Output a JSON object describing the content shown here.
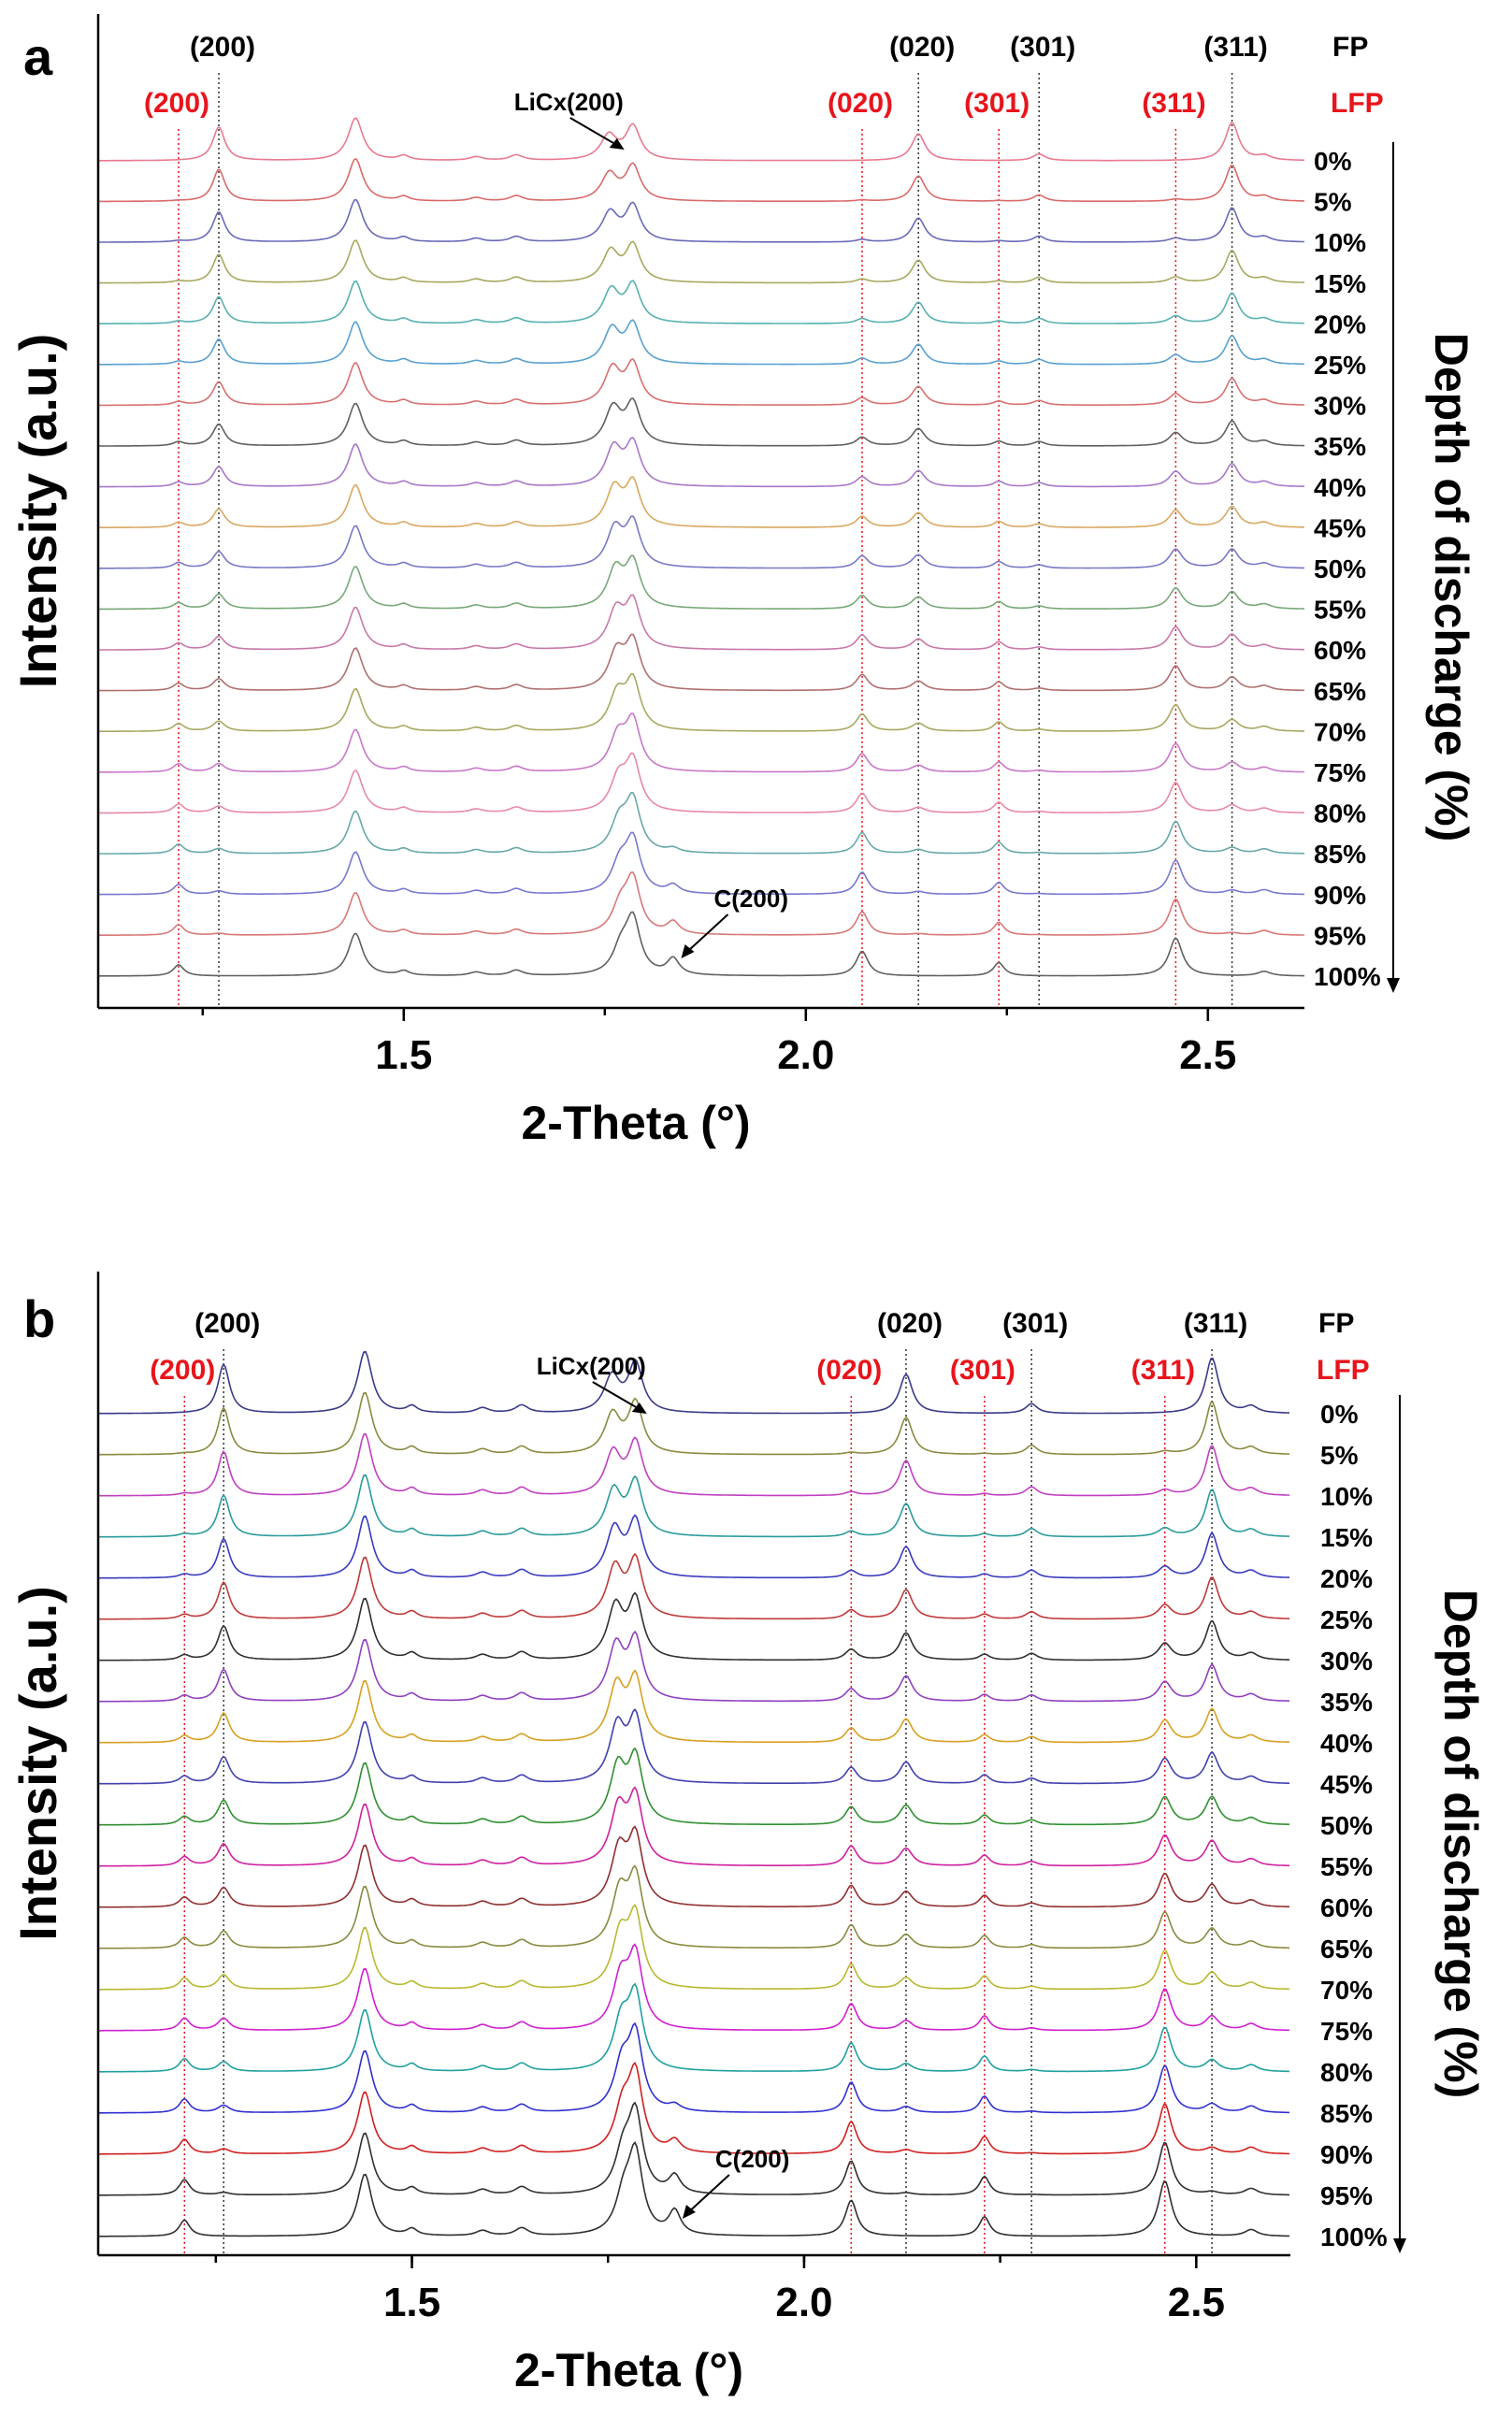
{
  "chart_data": [
    {
      "type": "line",
      "panel": "a",
      "xlabel": "2-Theta (°)",
      "ylabel": "Intensity (a.u.)",
      "right_label": "Depth of discharge (%)",
      "xlim": [
        1.12,
        2.62
      ],
      "xticks": [
        1.5,
        2.0,
        2.5
      ],
      "xtick_labels": [
        "1.5",
        "2.0",
        "2.5"
      ],
      "depth_labels": [
        "0%",
        "5%",
        "10%",
        "15%",
        "20%",
        "25%",
        "30%",
        "35%",
        "40%",
        "45%",
        "50%",
        "55%",
        "60%",
        "65%",
        "70%",
        "75%",
        "80%",
        "85%",
        "90%",
        "95%",
        "100%"
      ],
      "series_colors": [
        "#e87a8f",
        "#d96a6a",
        "#6a6ab8",
        "#a8a860",
        "#58b0b0",
        "#58a0d0",
        "#d87070",
        "#606060",
        "#a878c8",
        "#d8a860",
        "#7878c8",
        "#78a878",
        "#c878a8",
        "#b07070",
        "#a8a860",
        "#c878c8",
        "#e888a8",
        "#68a8a8",
        "#7878d0",
        "#d87878",
        "#606060"
      ],
      "legend": {
        "fp": "FP",
        "lfp": "LFP"
      },
      "fp_peaks": [
        {
          "label": "(200)",
          "x": 1.27
        },
        {
          "label": "(020)",
          "x": 2.14
        },
        {
          "label": "(301)",
          "x": 2.29
        },
        {
          "label": "(311)",
          "x": 2.53
        }
      ],
      "lfp_peaks": [
        {
          "label": "(200)",
          "x": 1.22
        },
        {
          "label": "(020)",
          "x": 2.07
        },
        {
          "label": "(301)",
          "x": 2.24
        },
        {
          "label": "(311)",
          "x": 2.46
        }
      ],
      "annotations": [
        {
          "text": "LiCx(200)",
          "x": 1.765
        },
        {
          "text": "C(200)",
          "x": 1.845
        }
      ]
    },
    {
      "type": "line",
      "panel": "b",
      "xlabel": "2-Theta (°)",
      "ylabel": "Intensity (a.u.)",
      "right_label": "Depth of discharge (%)",
      "xlim": [
        1.1,
        2.62
      ],
      "xticks": [
        1.5,
        2.0,
        2.5
      ],
      "xtick_labels": [
        "1.5",
        "2.0",
        "2.5"
      ],
      "depth_labels": [
        "0%",
        "5%",
        "10%",
        "15%",
        "20%",
        "25%",
        "30%",
        "35%",
        "40%",
        "45%",
        "50%",
        "55%",
        "60%",
        "65%",
        "70%",
        "75%",
        "80%",
        "85%",
        "90%",
        "95%",
        "100%"
      ],
      "series_colors": [
        "#3a3a8a",
        "#8a8a40",
        "#c040c0",
        "#2a9a9a",
        "#3a3ac0",
        "#c03a3a",
        "#303030",
        "#9040c0",
        "#d8a020",
        "#4040b0",
        "#309030",
        "#d020a0",
        "#903030",
        "#8a8a40",
        "#b8b830",
        "#d020d0",
        "#20a0a0",
        "#3030d0",
        "#d02020",
        "#303030",
        "#303030"
      ],
      "legend": {
        "fp": "FP",
        "lfp": "LFP"
      },
      "fp_peaks": [
        {
          "label": "(200)",
          "x": 1.26
        },
        {
          "label": "(020)",
          "x": 2.13
        },
        {
          "label": "(301)",
          "x": 2.29
        },
        {
          "label": "(311)",
          "x": 2.52
        }
      ],
      "lfp_peaks": [
        {
          "label": "(200)",
          "x": 1.21
        },
        {
          "label": "(020)",
          "x": 2.06
        },
        {
          "label": "(301)",
          "x": 2.23
        },
        {
          "label": "(311)",
          "x": 2.46
        }
      ],
      "annotations": [
        {
          "text": "LiCx(200)",
          "x": 1.79
        },
        {
          "text": "C(200)",
          "x": 1.845
        }
      ]
    }
  ]
}
